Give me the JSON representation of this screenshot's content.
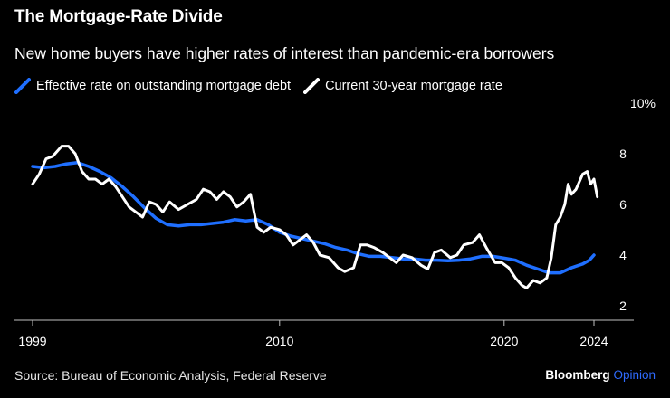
{
  "header": {
    "title": "The Mortgage-Rate Divide",
    "subtitle": "New home buyers have higher rates of interest than pandemic-era borrowers"
  },
  "legend": {
    "items": [
      {
        "label": "Effective rate on outstanding mortgage debt",
        "icon": "blue-line-icon",
        "color": "#1f6fff"
      },
      {
        "label": "Current 30-year mortgage rate",
        "icon": "white-line-icon",
        "color": "#ffffff"
      }
    ]
  },
  "footer": {
    "source": "Source: Bureau of Economic Analysis, Federal Reserve",
    "brand": "Bloomberg",
    "brand_accent": "Opinion"
  },
  "chart_data": {
    "type": "line",
    "title": "The Mortgage-Rate Divide",
    "xlabel": "",
    "ylabel": "",
    "xlim": [
      1999,
      2025
    ],
    "ylim": [
      2,
      10
    ],
    "x_ticks": [
      {
        "value": 1999,
        "label": "1999"
      },
      {
        "value": 2010,
        "label": "2010"
      },
      {
        "value": 2020,
        "label": "2020"
      },
      {
        "value": 2024,
        "label": "2024"
      }
    ],
    "y_ticks": [
      {
        "value": 2,
        "label": "2"
      },
      {
        "value": 4,
        "label": "4"
      },
      {
        "value": 6,
        "label": "6"
      },
      {
        "value": 8,
        "label": "8"
      },
      {
        "value": 10,
        "label": "10%"
      }
    ],
    "series": [
      {
        "name": "Effective rate on outstanding mortgage debt",
        "color": "#1f6fff",
        "points": [
          [
            1999.0,
            7.5
          ],
          [
            1999.5,
            7.45
          ],
          [
            2000.0,
            7.5
          ],
          [
            2000.5,
            7.6
          ],
          [
            2001.0,
            7.65
          ],
          [
            2001.5,
            7.5
          ],
          [
            2002.0,
            7.3
          ],
          [
            2002.5,
            7.05
          ],
          [
            2003.0,
            6.7
          ],
          [
            2003.5,
            6.3
          ],
          [
            2004.0,
            5.85
          ],
          [
            2004.5,
            5.45
          ],
          [
            2005.0,
            5.2
          ],
          [
            2005.5,
            5.15
          ],
          [
            2006.0,
            5.2
          ],
          [
            2006.5,
            5.2
          ],
          [
            2007.0,
            5.25
          ],
          [
            2007.5,
            5.3
          ],
          [
            2008.0,
            5.4
          ],
          [
            2008.5,
            5.35
          ],
          [
            2009.0,
            5.4
          ],
          [
            2009.5,
            5.2
          ],
          [
            2010.0,
            4.9
          ],
          [
            2010.5,
            4.75
          ],
          [
            2011.0,
            4.65
          ],
          [
            2011.5,
            4.55
          ],
          [
            2012.0,
            4.45
          ],
          [
            2012.5,
            4.3
          ],
          [
            2013.0,
            4.2
          ],
          [
            2013.5,
            4.05
          ],
          [
            2014.0,
            3.95
          ],
          [
            2014.5,
            3.95
          ],
          [
            2015.0,
            3.9
          ],
          [
            2015.5,
            3.85
          ],
          [
            2016.0,
            3.85
          ],
          [
            2016.5,
            3.8
          ],
          [
            2017.0,
            3.8
          ],
          [
            2017.5,
            3.78
          ],
          [
            2018.0,
            3.8
          ],
          [
            2018.5,
            3.85
          ],
          [
            2019.0,
            3.95
          ],
          [
            2019.5,
            3.95
          ],
          [
            2020.0,
            3.88
          ],
          [
            2020.5,
            3.8
          ],
          [
            2021.0,
            3.6
          ],
          [
            2021.5,
            3.45
          ],
          [
            2022.0,
            3.3
          ],
          [
            2022.5,
            3.3
          ],
          [
            2023.0,
            3.5
          ],
          [
            2023.5,
            3.65
          ],
          [
            2023.8,
            3.8
          ],
          [
            2024.0,
            4.0
          ]
        ]
      },
      {
        "name": "Current 30-year mortgage rate",
        "color": "#ffffff",
        "points": [
          [
            1999.0,
            6.8
          ],
          [
            1999.3,
            7.2
          ],
          [
            1999.6,
            7.8
          ],
          [
            1999.9,
            7.9
          ],
          [
            2000.3,
            8.3
          ],
          [
            2000.6,
            8.3
          ],
          [
            2000.9,
            8.0
          ],
          [
            2001.2,
            7.3
          ],
          [
            2001.5,
            7.0
          ],
          [
            2001.8,
            7.0
          ],
          [
            2002.1,
            6.8
          ],
          [
            2002.4,
            7.0
          ],
          [
            2002.7,
            6.7
          ],
          [
            2003.0,
            6.3
          ],
          [
            2003.3,
            5.9
          ],
          [
            2003.6,
            5.7
          ],
          [
            2003.9,
            5.5
          ],
          [
            2004.2,
            6.1
          ],
          [
            2004.5,
            6.0
          ],
          [
            2004.8,
            5.7
          ],
          [
            2005.1,
            6.1
          ],
          [
            2005.5,
            5.8
          ],
          [
            2005.9,
            6.0
          ],
          [
            2006.3,
            6.2
          ],
          [
            2006.6,
            6.6
          ],
          [
            2006.9,
            6.5
          ],
          [
            2007.2,
            6.2
          ],
          [
            2007.5,
            6.5
          ],
          [
            2007.8,
            6.3
          ],
          [
            2008.1,
            5.9
          ],
          [
            2008.4,
            6.1
          ],
          [
            2008.7,
            6.4
          ],
          [
            2009.0,
            5.1
          ],
          [
            2009.3,
            4.9
          ],
          [
            2009.6,
            5.1
          ],
          [
            2010.0,
            5.0
          ],
          [
            2010.3,
            4.8
          ],
          [
            2010.6,
            4.4
          ],
          [
            2010.9,
            4.6
          ],
          [
            2011.2,
            4.8
          ],
          [
            2011.5,
            4.5
          ],
          [
            2011.8,
            4.0
          ],
          [
            2012.2,
            3.9
          ],
          [
            2012.6,
            3.5
          ],
          [
            2012.9,
            3.35
          ],
          [
            2013.3,
            3.5
          ],
          [
            2013.6,
            4.4
          ],
          [
            2013.9,
            4.4
          ],
          [
            2014.2,
            4.3
          ],
          [
            2014.6,
            4.1
          ],
          [
            2014.9,
            3.9
          ],
          [
            2015.2,
            3.7
          ],
          [
            2015.5,
            4.0
          ],
          [
            2015.9,
            3.9
          ],
          [
            2016.3,
            3.6
          ],
          [
            2016.6,
            3.45
          ],
          [
            2016.9,
            4.1
          ],
          [
            2017.2,
            4.2
          ],
          [
            2017.6,
            3.9
          ],
          [
            2017.9,
            4.0
          ],
          [
            2018.2,
            4.4
          ],
          [
            2018.6,
            4.5
          ],
          [
            2018.9,
            4.8
          ],
          [
            2019.2,
            4.3
          ],
          [
            2019.6,
            3.7
          ],
          [
            2019.9,
            3.7
          ],
          [
            2020.2,
            3.5
          ],
          [
            2020.5,
            3.1
          ],
          [
            2020.8,
            2.8
          ],
          [
            2021.0,
            2.7
          ],
          [
            2021.3,
            3.0
          ],
          [
            2021.6,
            2.9
          ],
          [
            2021.9,
            3.1
          ],
          [
            2022.1,
            3.9
          ],
          [
            2022.3,
            5.2
          ],
          [
            2022.5,
            5.5
          ],
          [
            2022.7,
            6.0
          ],
          [
            2022.85,
            6.8
          ],
          [
            2023.0,
            6.4
          ],
          [
            2023.2,
            6.6
          ],
          [
            2023.5,
            7.2
          ],
          [
            2023.7,
            7.3
          ],
          [
            2023.85,
            6.8
          ],
          [
            2024.0,
            7.0
          ],
          [
            2024.15,
            6.3
          ]
        ]
      }
    ]
  }
}
